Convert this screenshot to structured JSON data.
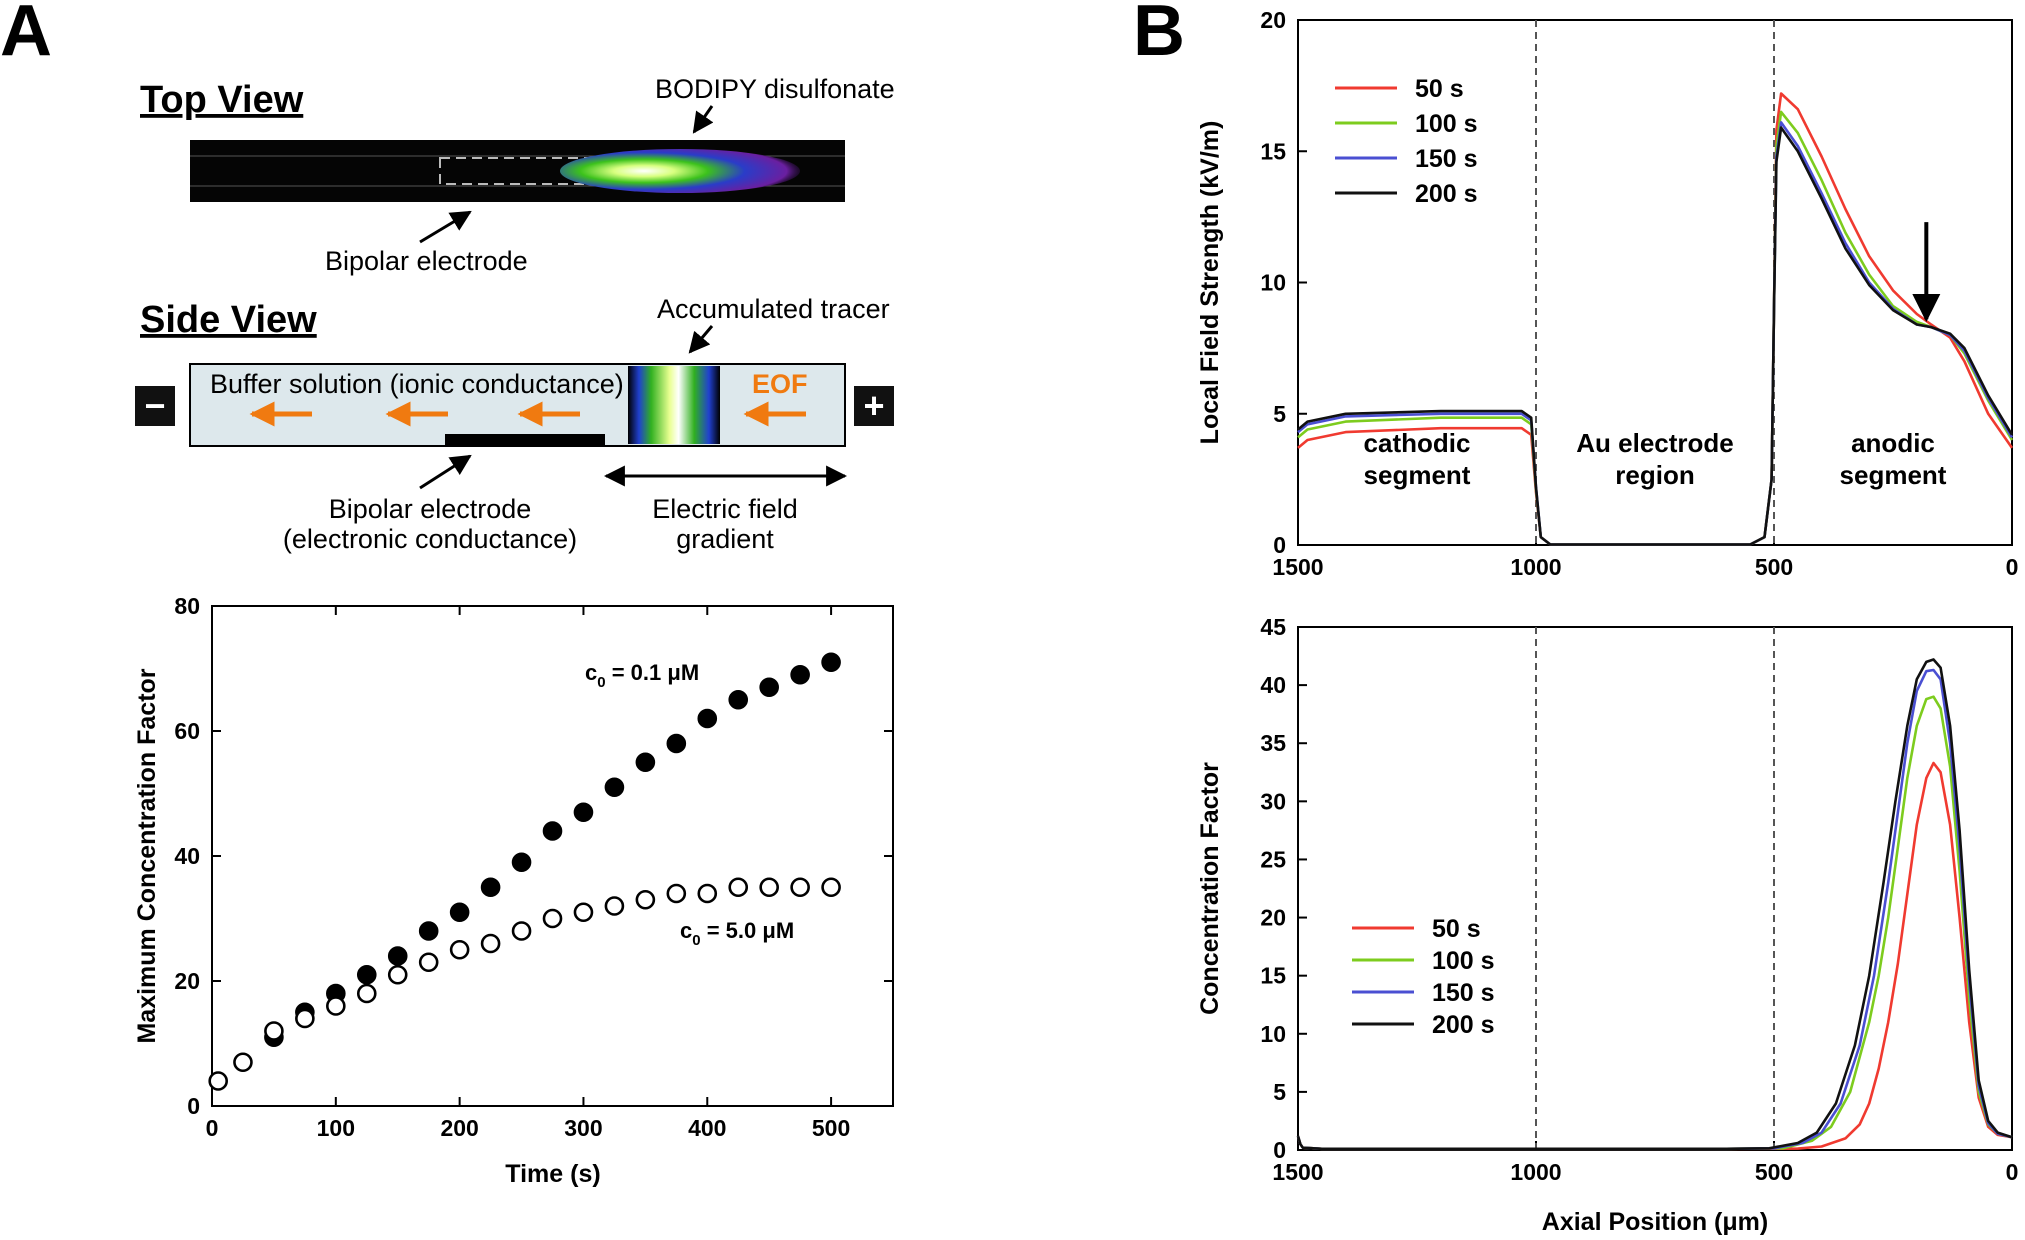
{
  "panels": {
    "a": "A",
    "b": "B"
  },
  "diagram": {
    "top_view_title": "Top View",
    "side_view_title": "Side View",
    "label_bodipy": "BODIPY disulfonate",
    "label_bipolar_top": "Bipolar electrode",
    "label_accumulated": "Accumulated tracer",
    "label_buffer": "Buffer solution (ionic conductance)",
    "label_eof": "EOF",
    "label_bipolar_side_1": "Bipolar electrode",
    "label_bipolar_side_2": "(electronic conductance)",
    "label_field_1": "Electric field",
    "label_field_2": "gradient",
    "minus": "−",
    "plus": "+"
  },
  "chart_data": [
    {
      "id": "max-concentration",
      "type": "scatter",
      "title": "",
      "xlabel": "Time (s)",
      "ylabel": "Maximum Concentration Factor",
      "xlim": [
        0,
        550
      ],
      "ylim": [
        0,
        80
      ],
      "xticks": [
        0,
        100,
        200,
        300,
        400,
        500
      ],
      "yticks": [
        0,
        20,
        40,
        60,
        80
      ],
      "grid": false,
      "series": [
        {
          "name": "c0 = 0.1 µM",
          "label_prefix": "c",
          "label_sub": "0",
          "label_suffix": " = 0.1 μM",
          "marker": "filled-circle",
          "x": [
            50,
            75,
            100,
            125,
            150,
            175,
            200,
            225,
            250,
            275,
            300,
            325,
            350,
            375,
            400,
            425,
            450,
            475,
            500
          ],
          "y": [
            11,
            15,
            18,
            21,
            24,
            28,
            31,
            35,
            39,
            44,
            47,
            51,
            55,
            58,
            62,
            65,
            67,
            69,
            71
          ]
        },
        {
          "name": "c0 = 5.0 µM",
          "label_prefix": "c",
          "label_sub": "0",
          "label_suffix": " = 5.0 μM",
          "marker": "open-circle",
          "x": [
            5,
            25,
            50,
            75,
            100,
            125,
            150,
            175,
            200,
            225,
            250,
            275,
            300,
            325,
            350,
            375,
            400,
            425,
            450,
            475,
            500
          ],
          "y": [
            4,
            7,
            12,
            14,
            16,
            18,
            21,
            23,
            25,
            26,
            28,
            30,
            31,
            32,
            33,
            34,
            34,
            35,
            35,
            35,
            35
          ]
        }
      ]
    },
    {
      "id": "field-strength",
      "type": "line",
      "title": "",
      "xlabel": "",
      "ylabel": "Local Field Strength (kV/m)",
      "xlim": [
        1500,
        0
      ],
      "ylim": [
        0,
        20
      ],
      "xticks": [
        1500,
        1000,
        500,
        0
      ],
      "yticks": [
        0,
        5,
        10,
        15,
        20
      ],
      "grid": false,
      "legend": "top-left",
      "reference_lines_x": [
        1000,
        500
      ],
      "regions": [
        {
          "line1": "cathodic",
          "line2": "segment",
          "x": 1250
        },
        {
          "line1": "Au electrode",
          "line2": "region",
          "x": 750
        },
        {
          "line1": "anodic",
          "line2": "segment",
          "x": 250
        }
      ],
      "arrow_annotation": {
        "x": 180,
        "y_from": 12.3,
        "y_to": 8.6
      },
      "series": [
        {
          "name": "50 s",
          "color": "#f03a30",
          "x": [
            1500,
            1480,
            1400,
            1200,
            1030,
            1010,
            1000,
            990,
            970,
            550,
            520,
            505,
            500,
            495,
            485,
            450,
            400,
            350,
            300,
            250,
            200,
            170,
            130,
            100,
            50,
            0
          ],
          "y": [
            3.7,
            4.0,
            4.3,
            4.45,
            4.45,
            4.2,
            2.0,
            0.3,
            0.02,
            0.02,
            0.3,
            2.5,
            9.0,
            15.8,
            17.2,
            16.6,
            14.8,
            12.8,
            11.0,
            9.7,
            8.8,
            8.4,
            7.9,
            7.0,
            5.0,
            3.7
          ]
        },
        {
          "name": "100 s",
          "color": "#7dcc1e",
          "x": [
            1500,
            1480,
            1400,
            1200,
            1030,
            1010,
            1000,
            990,
            970,
            550,
            520,
            505,
            500,
            495,
            485,
            450,
            400,
            350,
            300,
            250,
            200,
            170,
            130,
            100,
            50,
            0
          ],
          "y": [
            4.1,
            4.4,
            4.7,
            4.85,
            4.85,
            4.6,
            2.1,
            0.3,
            0.02,
            0.02,
            0.3,
            2.5,
            9.0,
            15.2,
            16.5,
            15.7,
            13.9,
            11.9,
            10.3,
            9.1,
            8.5,
            8.3,
            8.0,
            7.3,
            5.5,
            4.0
          ]
        },
        {
          "name": "150 s",
          "color": "#4a4fd2",
          "x": [
            1500,
            1480,
            1400,
            1200,
            1030,
            1010,
            1000,
            990,
            970,
            550,
            520,
            505,
            500,
            495,
            485,
            450,
            400,
            350,
            300,
            250,
            200,
            170,
            130,
            100,
            50,
            0
          ],
          "y": [
            4.3,
            4.6,
            4.9,
            5.0,
            5.0,
            4.75,
            2.2,
            0.3,
            0.02,
            0.02,
            0.3,
            2.5,
            9.0,
            14.8,
            16.1,
            15.2,
            13.4,
            11.5,
            10.0,
            9.0,
            8.4,
            8.3,
            8.0,
            7.4,
            5.6,
            4.1
          ]
        },
        {
          "name": "200 s",
          "color": "#111111",
          "x": [
            1500,
            1480,
            1400,
            1200,
            1030,
            1010,
            1000,
            990,
            970,
            550,
            520,
            505,
            500,
            495,
            485,
            450,
            400,
            350,
            300,
            250,
            200,
            170,
            130,
            100,
            50,
            0
          ],
          "y": [
            4.4,
            4.7,
            5.0,
            5.1,
            5.1,
            4.85,
            2.2,
            0.3,
            0.02,
            0.02,
            0.3,
            2.5,
            9.0,
            14.6,
            15.9,
            15.0,
            13.2,
            11.3,
            9.9,
            8.95,
            8.4,
            8.3,
            8.05,
            7.5,
            5.7,
            4.2
          ]
        }
      ]
    },
    {
      "id": "concentration-factor",
      "type": "line",
      "title": "",
      "xlabel": "Axial Position (μm)",
      "ylabel": "Concentration Factor",
      "xlim": [
        1500,
        0
      ],
      "ylim": [
        0,
        45
      ],
      "xticks": [
        1500,
        1000,
        500,
        0
      ],
      "yticks": [
        0,
        5,
        10,
        15,
        20,
        25,
        30,
        35,
        40,
        45
      ],
      "grid": false,
      "legend": "left",
      "reference_lines_x": [
        1000,
        500
      ],
      "series": [
        {
          "name": "50 s",
          "color": "#f03a30",
          "x": [
            1500,
            1495,
            1490,
            1450,
            600,
            450,
            400,
            350,
            320,
            300,
            280,
            260,
            240,
            220,
            200,
            180,
            165,
            150,
            130,
            110,
            90,
            70,
            50,
            30,
            0
          ],
          "y": [
            1.2,
            0.5,
            0.2,
            0.1,
            0.1,
            0.12,
            0.3,
            1.0,
            2.2,
            4.0,
            7.0,
            11.0,
            16.0,
            22.0,
            28.0,
            32.0,
            33.3,
            32.5,
            28.0,
            20.0,
            11.0,
            4.5,
            2.0,
            1.3,
            1.1
          ]
        },
        {
          "name": "100 s",
          "color": "#7dcc1e",
          "x": [
            1500,
            1495,
            1490,
            1450,
            600,
            480,
            420,
            380,
            340,
            300,
            280,
            260,
            240,
            220,
            200,
            180,
            165,
            150,
            130,
            110,
            90,
            70,
            50,
            30,
            0
          ],
          "y": [
            1.2,
            0.5,
            0.2,
            0.1,
            0.1,
            0.15,
            0.8,
            2.0,
            5.0,
            11.0,
            15.0,
            20.0,
            26.0,
            32.0,
            36.5,
            38.8,
            39.0,
            38.0,
            33.0,
            24.0,
            13.0,
            5.0,
            2.2,
            1.4,
            1.1
          ]
        },
        {
          "name": "150 s",
          "color": "#4a4fd2",
          "x": [
            1500,
            1495,
            1490,
            1450,
            600,
            500,
            440,
            400,
            360,
            320,
            290,
            260,
            240,
            220,
            200,
            180,
            165,
            150,
            130,
            110,
            90,
            70,
            50,
            30,
            0
          ],
          "y": [
            1.2,
            0.5,
            0.2,
            0.1,
            0.1,
            0.15,
            0.6,
            1.5,
            4.0,
            9.0,
            15.0,
            23.0,
            29.0,
            35.0,
            39.5,
            41.2,
            41.3,
            40.5,
            35.0,
            26.0,
            14.5,
            5.5,
            2.3,
            1.4,
            1.1
          ]
        },
        {
          "name": "200 s",
          "color": "#111111",
          "x": [
            1500,
            1495,
            1490,
            1450,
            600,
            510,
            450,
            410,
            370,
            330,
            300,
            270,
            245,
            220,
            200,
            180,
            165,
            150,
            130,
            110,
            90,
            70,
            50,
            30,
            0
          ],
          "y": [
            1.2,
            0.5,
            0.2,
            0.1,
            0.1,
            0.15,
            0.6,
            1.5,
            4.0,
            9.0,
            15.0,
            23.0,
            30.0,
            36.5,
            40.5,
            42.0,
            42.2,
            41.5,
            36.5,
            27.5,
            15.5,
            6.0,
            2.5,
            1.5,
            1.1
          ]
        }
      ]
    }
  ]
}
